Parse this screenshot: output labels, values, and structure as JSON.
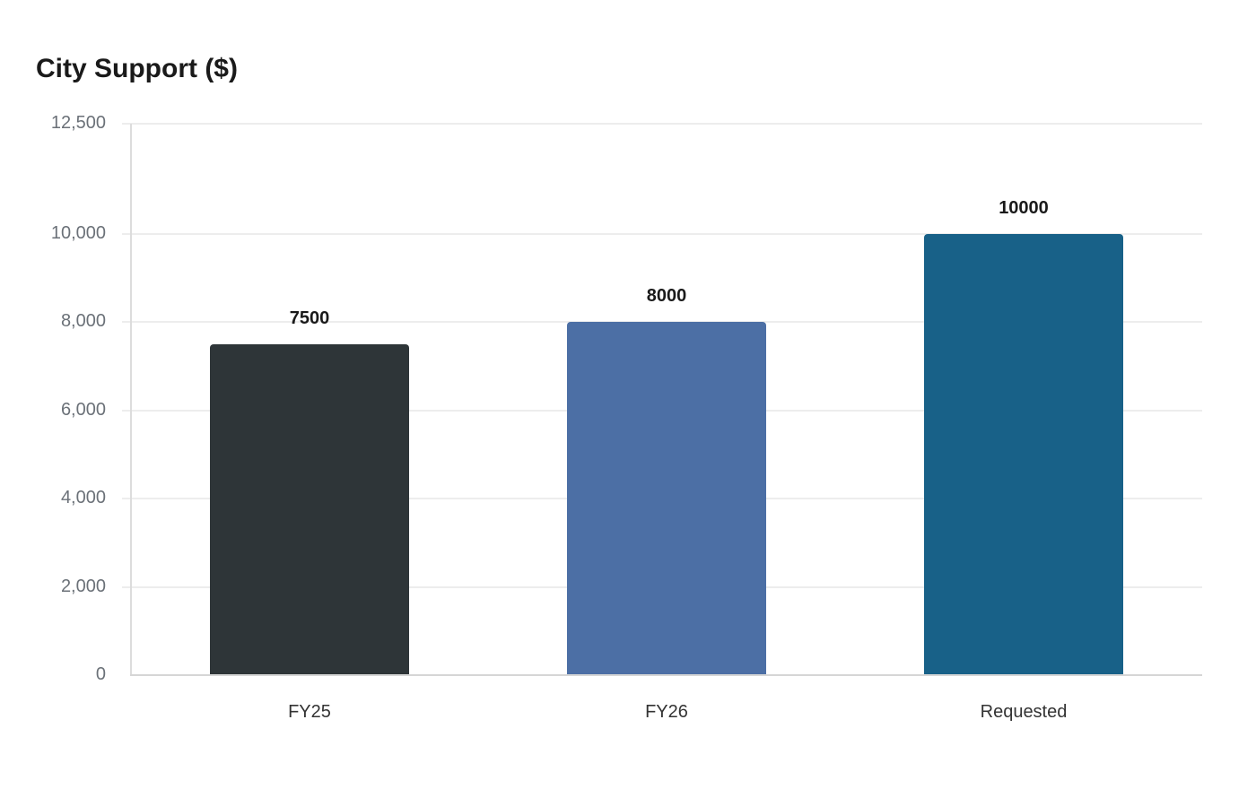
{
  "chart_data": {
    "type": "bar",
    "title": "City Support ($)",
    "xlabel": "",
    "ylabel": "",
    "categories": [
      "FY25",
      "FY26",
      "Requested"
    ],
    "values": [
      7500,
      8000,
      10000
    ],
    "data_labels": [
      "7500",
      "8000",
      "10000"
    ],
    "colors": [
      "#2e3538",
      "#4c6fa5",
      "#186188"
    ],
    "ylim": [
      0,
      12500
    ],
    "yticks": [
      0,
      2000,
      4000,
      6000,
      8000,
      10000,
      12500
    ],
    "ytick_labels": [
      "0",
      "2,000",
      "4,000",
      "6,000",
      "8,000",
      "10,000",
      "12,500"
    ],
    "grid": true,
    "legend": null
  }
}
